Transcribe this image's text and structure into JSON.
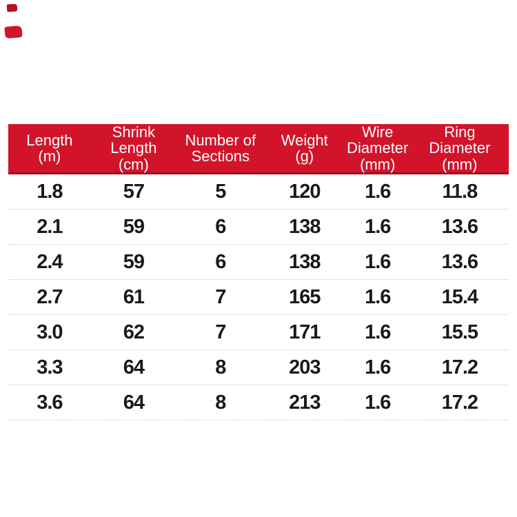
{
  "colors": {
    "header_bg": "#d2142b",
    "header_bottom_edge": "#9c1120",
    "header_text": "#ffffff",
    "data_text": "#1a1a1a",
    "row_divider": "#c9c9c9",
    "mark_dark_red": "#b5121f",
    "mark_red": "#d2142b",
    "background": "#ffffff"
  },
  "table": {
    "columns": [
      {
        "id": "length",
        "lines": [
          "Length",
          "(m)"
        ]
      },
      {
        "id": "shrink_length",
        "lines": [
          "Shrink",
          "Length",
          "(cm)"
        ]
      },
      {
        "id": "sections",
        "lines": [
          "Number of",
          "Sections"
        ]
      },
      {
        "id": "weight",
        "lines": [
          "Weight",
          "(g)"
        ]
      },
      {
        "id": "wire_diameter",
        "lines": [
          "Wire",
          "Diameter",
          "(mm)"
        ]
      },
      {
        "id": "ring_diameter",
        "lines": [
          "Ring",
          "Diameter",
          "(mm)"
        ]
      }
    ],
    "rows": [
      [
        "1.8",
        "57",
        "5",
        "120",
        "1.6",
        "11.8"
      ],
      [
        "2.1",
        "59",
        "6",
        "138",
        "1.6",
        "13.6"
      ],
      [
        "2.4",
        "59",
        "6",
        "138",
        "1.6",
        "13.6"
      ],
      [
        "2.7",
        "61",
        "7",
        "165",
        "1.6",
        "15.4"
      ],
      [
        "3.0",
        "62",
        "7",
        "171",
        "1.6",
        "15.5"
      ],
      [
        "3.3",
        "64",
        "8",
        "203",
        "1.6",
        "17.2"
      ],
      [
        "3.6",
        "64",
        "8",
        "213",
        "1.6",
        "17.2"
      ]
    ]
  },
  "chart_data": {
    "type": "table",
    "title": "",
    "columns": [
      "Length (m)",
      "Shrink Length (cm)",
      "Number of Sections",
      "Weight (g)",
      "Wire Diameter (mm)",
      "Ring Diameter (mm)"
    ],
    "rows": [
      [
        1.8,
        57,
        5,
        120,
        1.6,
        11.8
      ],
      [
        2.1,
        59,
        6,
        138,
        1.6,
        13.6
      ],
      [
        2.4,
        59,
        6,
        138,
        1.6,
        13.6
      ],
      [
        2.7,
        61,
        7,
        165,
        1.6,
        15.4
      ],
      [
        3.0,
        62,
        7,
        171,
        1.6,
        15.5
      ],
      [
        3.3,
        64,
        8,
        203,
        1.6,
        17.2
      ],
      [
        3.6,
        64,
        8,
        213,
        1.6,
        17.2
      ]
    ]
  }
}
